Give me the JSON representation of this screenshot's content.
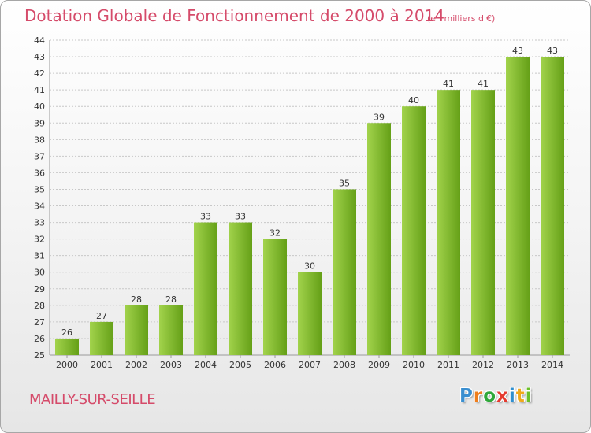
{
  "title": "Dotation Globale de Fonctionnement de 2000 à 2014",
  "unit_note": "(en milliers d'€)",
  "commune": "MAILLY-SUR-SEILLE",
  "logo": {
    "letters": [
      "P",
      "r",
      "o",
      "x",
      "i",
      "t",
      "i"
    ],
    "colors": [
      "#3a8fd0",
      "#ef7e1d",
      "#2fa83a",
      "#e53b2f",
      "#2f8fcf",
      "#f0a91b",
      "#6bbf2a"
    ]
  },
  "colors": {
    "bar_light": "#a2d34c",
    "bar_dark": "#65a017",
    "title": "#d54b6a",
    "grid": "#c8c8c8"
  },
  "chart_data": {
    "type": "bar",
    "title": "Dotation Globale de Fonctionnement de 2000 à 2014",
    "categories": [
      "2000",
      "2001",
      "2002",
      "2003",
      "2004",
      "2005",
      "2006",
      "2007",
      "2008",
      "2009",
      "2010",
      "2011",
      "2012",
      "2013",
      "2014"
    ],
    "values": [
      26,
      27,
      28,
      28,
      33,
      33,
      32,
      30,
      35,
      39,
      40,
      41,
      41,
      43,
      43
    ],
    "xlabel": "",
    "ylabel": "",
    "ylim": [
      25,
      44
    ],
    "yticks": [
      "25",
      "26",
      "27",
      "28",
      "29",
      "30",
      "31",
      "32",
      "33",
      "34",
      "35",
      "36",
      "37",
      "38",
      "39",
      "40",
      "41",
      "42",
      "43",
      "44"
    ],
    "grid": true,
    "data_labels": true
  }
}
